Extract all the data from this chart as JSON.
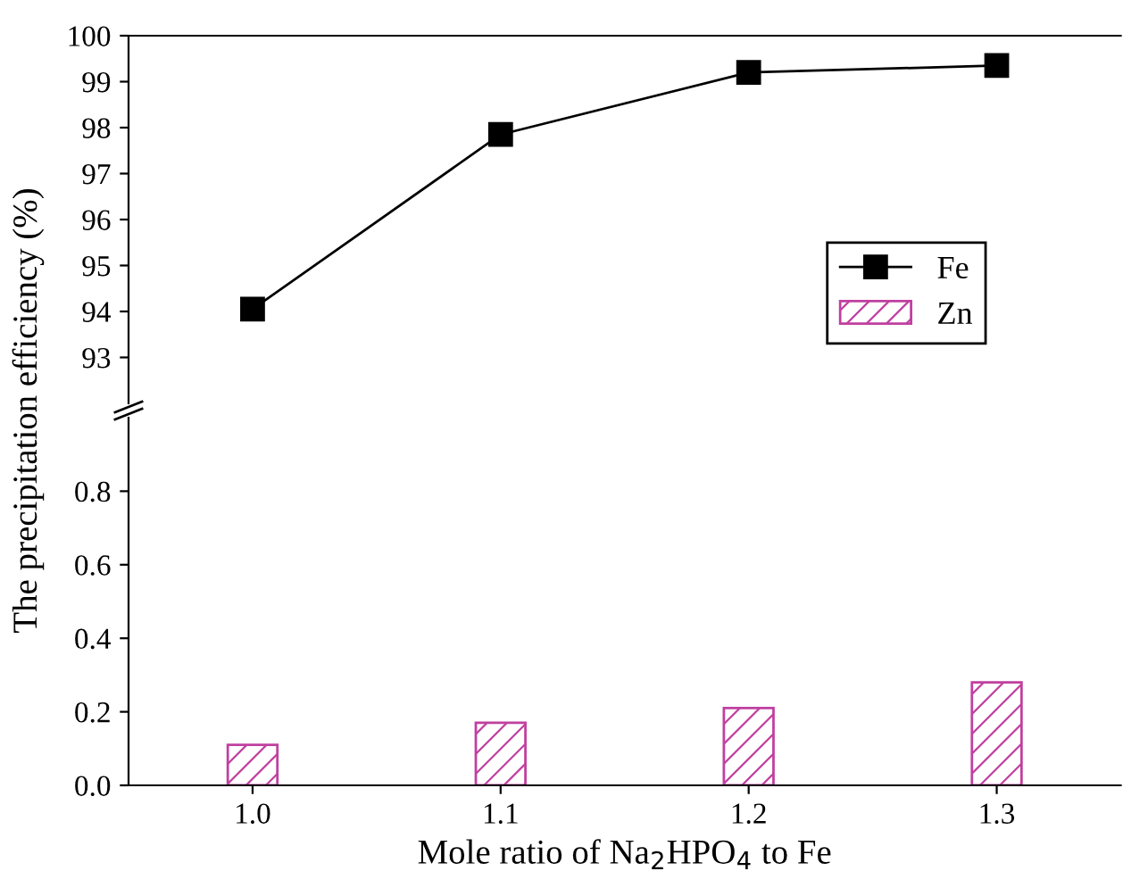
{
  "chart_data": [
    {
      "type": "line",
      "x": [
        1.0,
        1.1,
        1.2,
        1.3
      ],
      "xlim": [
        0.95,
        1.35
      ],
      "ylim": [
        92,
        100
      ],
      "yticks": [
        93,
        94,
        95,
        96,
        97,
        98,
        99,
        100
      ],
      "tick_labels": "y",
      "marker": "square",
      "line_style": "solid",
      "legend": "right",
      "series": [
        {
          "name": "Fe",
          "color": "#000000",
          "values": [
            94.05,
            97.85,
            99.2,
            99.35
          ]
        }
      ]
    },
    {
      "type": "bar",
      "x": [
        1.0,
        1.1,
        1.2,
        1.3
      ],
      "xlim": [
        0.95,
        1.35
      ],
      "xticks": [
        {
          "value": 1.0,
          "label": "1.0"
        },
        {
          "value": 1.1,
          "label": "1.1"
        },
        {
          "value": 1.2,
          "label": "1.2"
        },
        {
          "value": 1.3,
          "label": "1.3"
        }
      ],
      "ylim": [
        0,
        1.0
      ],
      "yticks": [
        {
          "value": 0,
          "label": "0.0"
        },
        {
          "value": 0.2,
          "label": "0.2"
        },
        {
          "value": 0.4,
          "label": "0.4"
        },
        {
          "value": 0.6,
          "label": "0.6"
        },
        {
          "value": 0.8,
          "label": "0.8"
        }
      ],
      "xlabel": "Mole ratio of Na$_{2}$HPO$_{4}$ to Fe",
      "ylabel": "The precipitation efficiency (%)",
      "series": [
        {
          "name": "Zn",
          "color": "#c040a0",
          "values": [
            0.11,
            0.17,
            0.21,
            0.28
          ]
        }
      ]
    }
  ]
}
